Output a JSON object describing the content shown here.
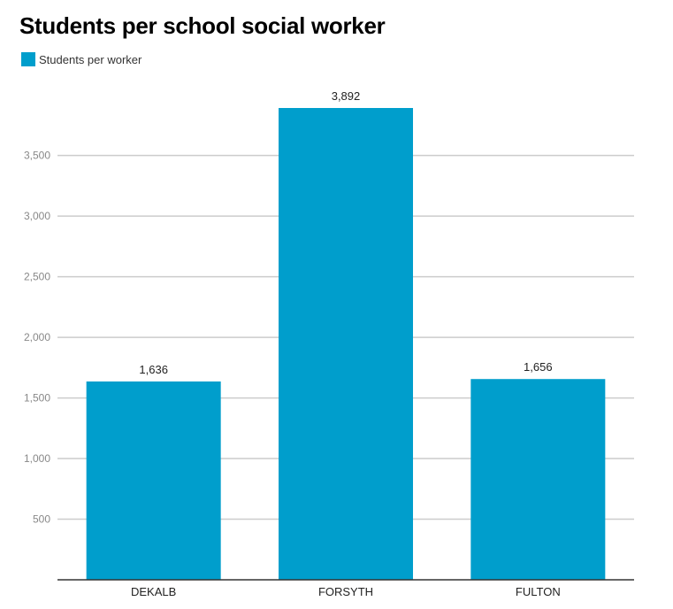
{
  "colors": {
    "bar": "#009ecc",
    "grid": "#cccccc",
    "axis": "#333333"
  },
  "chart_data": {
    "type": "bar",
    "title": "Students per school social worker",
    "categories": [
      "DEKALB",
      "FORSYTH",
      "FULTON"
    ],
    "series": [
      {
        "name": "Students per worker",
        "values": [
          1636,
          3892,
          1656
        ],
        "labels": [
          "1,636",
          "3,892",
          "1,656"
        ]
      }
    ],
    "yticks": [
      500,
      1000,
      1500,
      2000,
      2500,
      3000,
      3500
    ],
    "ytick_labels": [
      "500",
      "1,000",
      "1,500",
      "2,000",
      "2,500",
      "3,000",
      "3,500"
    ],
    "ylim": [
      0,
      3892
    ],
    "grid": true,
    "legend_position": "top-left"
  }
}
